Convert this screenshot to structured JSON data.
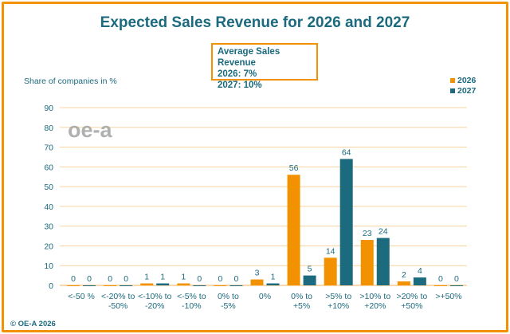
{
  "chart_data": {
    "type": "bar",
    "title": "Expected Sales Revenue for 2026 and 2027",
    "ylabel": "Share of companies in %",
    "xlabel": "",
    "ylim": [
      0,
      90
    ],
    "yticks": [
      0,
      10,
      20,
      30,
      40,
      50,
      60,
      70,
      80,
      90
    ],
    "grid": true,
    "legend": "top-right",
    "categories": [
      [
        "<-50 %"
      ],
      [
        "<-20% to",
        "-50%"
      ],
      [
        "<-10% to",
        "-20%"
      ],
      [
        "<-5% to",
        "-10%"
      ],
      [
        "0% to",
        "-5%"
      ],
      [
        "0%"
      ],
      [
        "0% to",
        "+5%"
      ],
      [
        ">5% to",
        "+10%"
      ],
      [
        ">10% to",
        "+20%"
      ],
      [
        ">20% to",
        "+50%"
      ],
      [
        ">+50%"
      ]
    ],
    "series": [
      {
        "name": "2026",
        "color": "#f39200",
        "values": [
          0,
          0,
          1,
          1,
          0,
          3,
          56,
          14,
          23,
          2,
          0
        ]
      },
      {
        "name": "2027",
        "color": "#1b6a7e",
        "values": [
          0,
          0,
          1,
          0,
          0,
          1,
          5,
          64,
          24,
          4,
          0
        ]
      }
    ],
    "annotation": [
      "Average Sales Revenue",
      "2026: 7%",
      "2027: 10%"
    ]
  },
  "footer": {
    "copyright": "© OE-A 2026"
  },
  "logo_text": "oe-a",
  "colors": {
    "frame": "#f39200",
    "grid": "#f9c98a",
    "text": "#1b6a7e"
  }
}
